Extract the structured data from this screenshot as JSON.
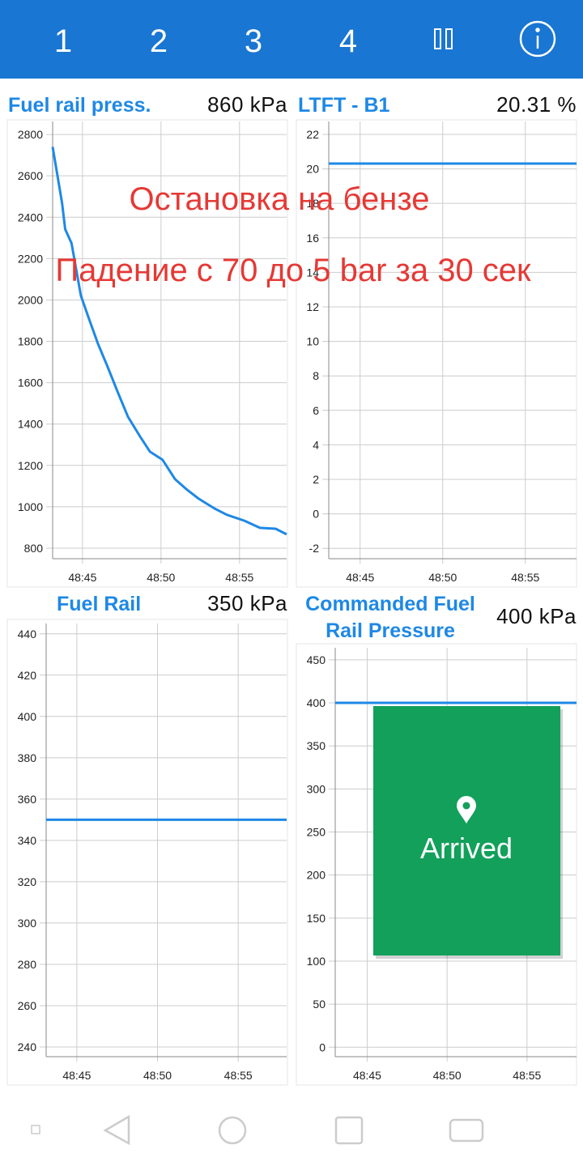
{
  "tabs": [
    "1",
    "2",
    "3",
    "4"
  ],
  "annotations": [
    "Остановка на бензе",
    "Падение с 70 до 5 bar за 30 сек"
  ],
  "popup": {
    "label": "Arrived"
  },
  "chart_data": [
    {
      "type": "line",
      "title": "Fuel rail press.",
      "reading": "860 kPa",
      "x": [
        2923.1,
        2923.7,
        2923.9,
        2924.3,
        2924.9,
        2925.4,
        2926.0,
        2926.6,
        2927.3,
        2927.9,
        2928.7,
        2929.3,
        2930.1,
        2930.9,
        2931.6,
        2932.4,
        2933.4,
        2934.2,
        2935.3,
        2936.3,
        2937.3,
        2938.0
      ],
      "series": [
        {
          "color": "#1e88e5",
          "values": [
            2740,
            2470,
            2342,
            2275,
            2021,
            1912,
            1786,
            1677,
            1544,
            1435,
            1336,
            1266,
            1227,
            1133,
            1086,
            1039,
            992,
            961,
            933,
            898,
            894,
            867
          ]
        }
      ],
      "xlim": [
        2923.1,
        2938.0
      ],
      "xticks": [
        {
          "value": 2925,
          "label": "48:45"
        },
        {
          "value": 2930,
          "label": "48:50"
        },
        {
          "value": 2935,
          "label": "48:55"
        }
      ],
      "ylim": [
        749,
        2863
      ],
      "yticks": [
        800,
        1000,
        1200,
        1400,
        1600,
        1800,
        2000,
        2200,
        2400,
        2600,
        2800
      ],
      "grid": true
    },
    {
      "type": "line",
      "title": "LTFT - B1",
      "reading": "20.31 %",
      "x": [
        2923.1,
        2938.1
      ],
      "series": [
        {
          "color": "#1e88e5",
          "values": [
            20.31,
            20.31
          ]
        }
      ],
      "xlim": [
        2923.1,
        2938.1
      ],
      "xticks": [
        {
          "value": 2925,
          "label": "48:45"
        },
        {
          "value": 2930,
          "label": "48:50"
        },
        {
          "value": 2935,
          "label": "48:55"
        }
      ],
      "ylim": [
        -2.6,
        22.75
      ],
      "yticks": [
        -2,
        0,
        2,
        4,
        6,
        8,
        10,
        12,
        14,
        16,
        18,
        20,
        22
      ],
      "grid": true
    },
    {
      "type": "line",
      "title": "Fuel Rail",
      "reading": "350 kPa",
      "x": [
        2923.1,
        2938.0
      ],
      "series": [
        {
          "color": "#1e88e5",
          "values": [
            350,
            350
          ]
        }
      ],
      "xlim": [
        2923.1,
        2938.0
      ],
      "xticks": [
        {
          "value": 2925,
          "label": "48:45"
        },
        {
          "value": 2930,
          "label": "48:50"
        },
        {
          "value": 2935,
          "label": "48:55"
        }
      ],
      "ylim": [
        235.3,
        445
      ],
      "yticks": [
        240,
        260,
        280,
        300,
        320,
        340,
        360,
        380,
        400,
        420,
        440
      ],
      "grid": true
    },
    {
      "type": "line",
      "title": "Commanded Fuel Rail Pressure",
      "reading": "400 kPa",
      "x": [
        2923.0,
        2938.1
      ],
      "series": [
        {
          "color": "#1e88e5",
          "values": [
            400,
            400
          ]
        }
      ],
      "xlim": [
        2923.0,
        2938.1
      ],
      "xticks": [
        {
          "value": 2925,
          "label": "48:45"
        },
        {
          "value": 2930,
          "label": "48:50"
        },
        {
          "value": 2935,
          "label": "48:55"
        }
      ],
      "ylim": [
        -11,
        464
      ],
      "yticks": [
        0,
        50,
        100,
        150,
        200,
        250,
        300,
        350,
        400,
        450
      ],
      "grid": true
    }
  ]
}
